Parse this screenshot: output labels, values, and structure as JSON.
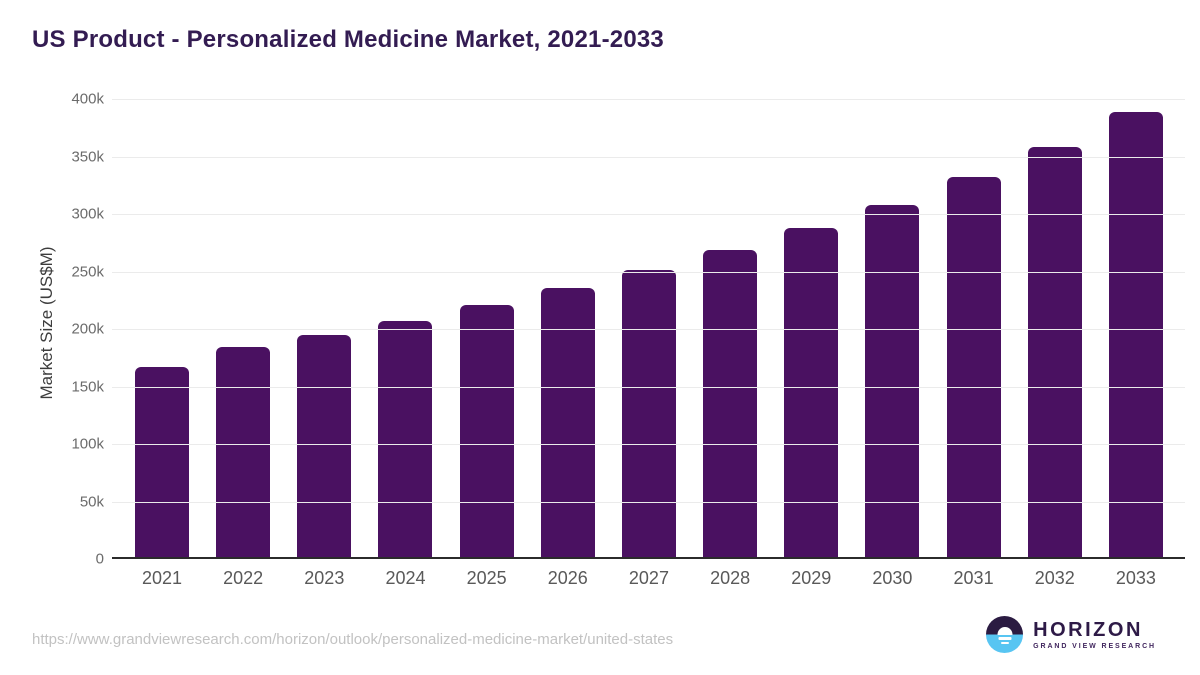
{
  "page": {
    "title": "US Product - Personalized Medicine Market, 2021-2033",
    "source_url": "https://www.grandviewresearch.com/horizon/outlook/personalized-medicine-market/united-states"
  },
  "logo": {
    "name": "HORIZON",
    "subtitle": "GRAND VIEW RESEARCH"
  },
  "colors": {
    "bar": "#4a1161",
    "title": "#331c52",
    "gridline": "#ebebeb",
    "axis_line": "#2b2b2b",
    "y_tick_label": "#6b6b6b",
    "x_tick_label": "#595959",
    "axis_title": "#3d3d3d",
    "source_url": "#c2c2c2",
    "logo_dark_half": "#2b1b42",
    "logo_blue_half": "#58c5f2"
  },
  "chart_data": {
    "type": "bar",
    "title": "US Product - Personalized Medicine Market, 2021-2033",
    "xlabel": "",
    "ylabel": "Market Size (US$M)",
    "unit": "US$M",
    "categories": [
      "2021",
      "2022",
      "2023",
      "2024",
      "2025",
      "2026",
      "2027",
      "2028",
      "2029",
      "2030",
      "2031",
      "2032",
      "2033"
    ],
    "values": [
      166000,
      183000,
      193500,
      206500,
      220000,
      234500,
      250500,
      268000,
      287500,
      307500,
      331500,
      358500,
      388500
    ],
    "ylim": [
      0,
      400000
    ],
    "ytick_step": 50000,
    "ytick_labels": [
      "0",
      "50k",
      "100k",
      "150k",
      "200k",
      "250k",
      "300k",
      "350k",
      "400k"
    ],
    "grid": "horizontal",
    "legend": "none",
    "bar_color": "#4a1161"
  }
}
